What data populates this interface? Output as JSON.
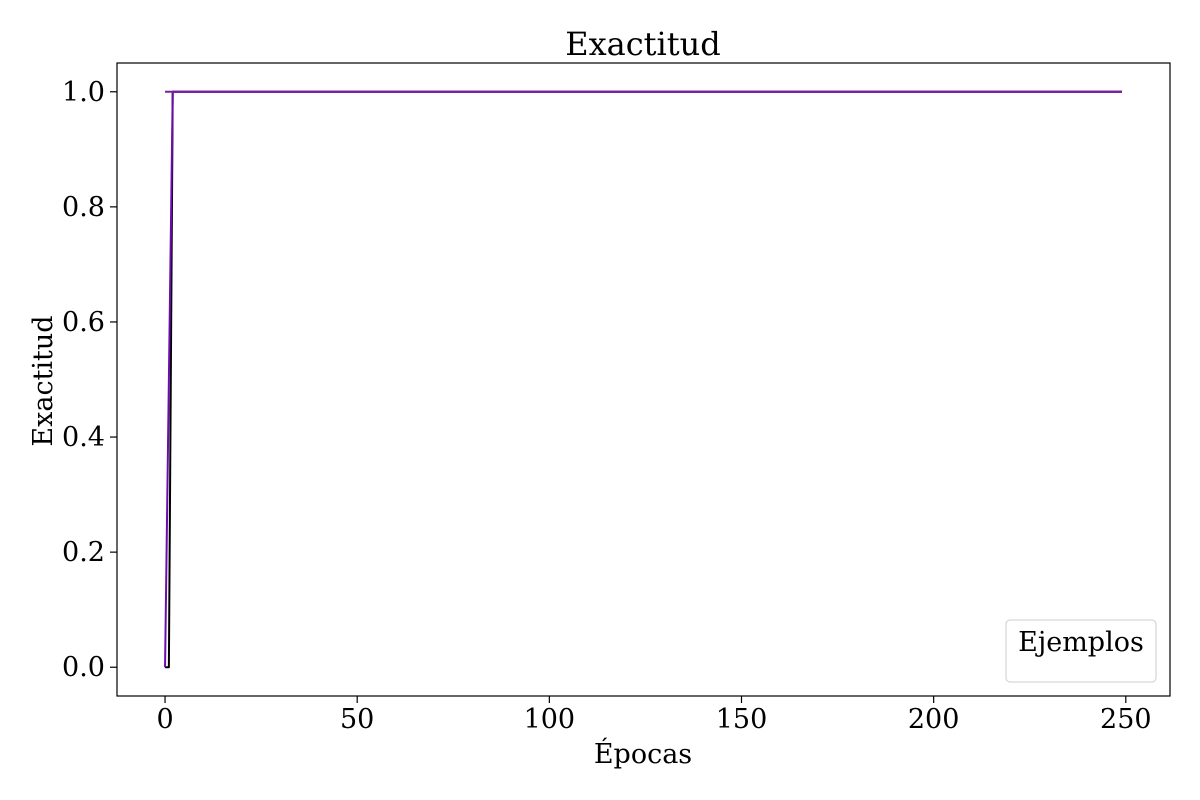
{
  "chart_data": {
    "type": "line",
    "title": "Exactitud",
    "xlabel": "Épocas",
    "ylabel": "Exactitud",
    "xlim": [
      -12.5,
      261.5
    ],
    "ylim": [
      -0.05,
      1.05
    ],
    "x_ticks": [
      0,
      50,
      100,
      150,
      200,
      250
    ],
    "y_ticks": [
      0.0,
      0.2,
      0.4,
      0.6,
      0.8,
      1.0
    ],
    "x_tick_labels": [
      "0",
      "50",
      "100",
      "150",
      "200",
      "250"
    ],
    "y_tick_labels": [
      "0.0",
      "0.2",
      "0.4",
      "0.6",
      "0.8",
      "1.0"
    ],
    "grid": false,
    "legend": {
      "title": "Ejemplos",
      "placement": "lower-right",
      "entries": []
    },
    "series": [
      {
        "color": "#000000",
        "points": [
          [
            0,
            0.0
          ],
          [
            1,
            0.0
          ],
          [
            2,
            1.0
          ],
          [
            249,
            1.0
          ]
        ]
      },
      {
        "color": "#6a0dad",
        "points": [
          [
            0,
            0.0
          ],
          [
            2,
            1.0
          ],
          [
            249,
            1.0
          ]
        ]
      },
      {
        "color": "#7b1fa2",
        "points": [
          [
            0,
            1.0
          ],
          [
            249,
            1.0
          ]
        ]
      }
    ]
  }
}
